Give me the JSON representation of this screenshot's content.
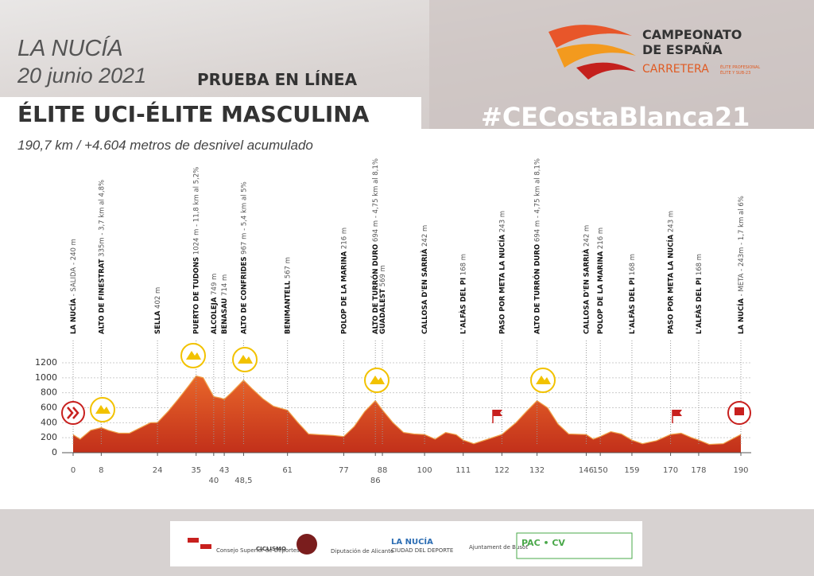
{
  "header": {
    "location": "LA NUCÍA",
    "date": "20 junio 2021",
    "stage": "PRUEBA EN LÍNEA",
    "category": "ÉLITE UCI-ÉLITE MASCULINA",
    "summary": "190,7 km / +4.604 metros de desnivel acumulado",
    "hashtag": "#CECostaBlanca21"
  },
  "logo": {
    "line1": "CAMPEONATO",
    "line2": "DE ESPAÑA",
    "line3": "CARRETERA",
    "line4": "ÉLITE PROFESIONAL",
    "line5": "ÉLITE Y SUB-23"
  },
  "sponsors": [
    "Consejo Superior de Deportes",
    "CICLISMO",
    "Diputación de Alicante",
    "LA NUCÍA",
    "CIUDAD DEL DEPORTE",
    "Ajuntament de Busot",
    "PAC • CV"
  ],
  "chart_data": {
    "type": "area",
    "color": "#d8461c",
    "x": [
      0,
      2,
      5,
      8,
      10,
      13,
      16,
      19,
      22,
      24,
      27,
      30,
      33,
      35,
      37,
      40,
      42,
      43,
      45,
      48.5,
      51,
      54,
      57,
      61,
      64,
      67,
      70,
      74,
      77,
      80,
      83,
      86,
      88,
      91,
      94,
      97,
      100,
      103,
      106,
      109,
      111,
      114,
      118,
      122,
      126,
      129,
      132,
      135,
      138,
      141,
      146,
      148,
      150,
      153,
      156,
      159,
      162,
      166,
      170,
      173,
      176,
      178,
      181,
      185,
      190
    ],
    "values": [
      240,
      180,
      300,
      335,
      300,
      260,
      260,
      330,
      400,
      402,
      550,
      720,
      900,
      1024,
      1000,
      749,
      730,
      714,
      800,
      967,
      850,
      720,
      620,
      567,
      400,
      250,
      240,
      230,
      216,
      350,
      550,
      694,
      569,
      400,
      270,
      250,
      242,
      180,
      270,
      240,
      168,
      120,
      180,
      243,
      400,
      550,
      694,
      600,
      380,
      250,
      242,
      180,
      216,
      280,
      250,
      168,
      120,
      160,
      243,
      260,
      200,
      168,
      110,
      120,
      243
    ],
    "xlim": [
      0,
      190
    ],
    "ylim": [
      0,
      1200
    ],
    "yticks": [
      0,
      200,
      400,
      600,
      800,
      1000,
      1200
    ],
    "xticks": [
      0,
      8,
      24,
      35,
      40,
      43,
      {
        "value": 48.5,
        "label": "48,5"
      },
      61,
      77,
      86,
      88,
      100,
      111,
      122,
      132,
      146,
      150,
      159,
      170,
      178,
      190
    ],
    "grid": true,
    "waypoints": [
      {
        "km": 0,
        "name": "LA NUCÍA",
        "detail": " - SALIDA - 240 m"
      },
      {
        "km": 8,
        "name": "ALTO DE FINESTRAT",
        "detail": " 335m - 3,7 km al 4,8%"
      },
      {
        "km": 24,
        "name": "SELLA",
        "detail": " 402 m"
      },
      {
        "km": 35,
        "name": "PUERTO DE TUDONS",
        "detail": " 1024 m - 11,8 km al 5,2%"
      },
      {
        "km": 40,
        "name": "ALCOLEJA",
        "detail": " 749 m"
      },
      {
        "km": 43,
        "name": "BENASAU",
        "detail": " 714 m"
      },
      {
        "km": 48.5,
        "name": "ALTO DE CONFRIDES",
        "detail": " 967 m - 5,4 km al 5%"
      },
      {
        "km": 61,
        "name": "BENIMANTELL",
        "detail": " 567 m"
      },
      {
        "km": 77,
        "name": "POLOP DE LA MARINA",
        "detail": " 216 m"
      },
      {
        "km": 86,
        "name": "ALTO DE TURRÓN DURO",
        "detail": " 694 m - 4,75 km al 8,1%"
      },
      {
        "km": 88,
        "name": "GUADALEST",
        "detail": " 569 m"
      },
      {
        "km": 100,
        "name": "CALLOSA D'EN SARRIÀ",
        "detail": " 242 m"
      },
      {
        "km": 111,
        "name": "L'ALFÀS DEL PI",
        "detail": " 168 m"
      },
      {
        "km": 122,
        "name": "PASO POR META LA NUCÍA",
        "detail": " 243 m"
      },
      {
        "km": 132,
        "name": "ALTO DE TURRÓN DURO",
        "detail": " 694 m - 4,75 km al 8,1%"
      },
      {
        "km": 146,
        "name": "CALLOSA D'EN SARRIÀ",
        "detail": " 242 m"
      },
      {
        "km": 150,
        "name": "POLOP DE LA MARINA",
        "detail": " 216 m"
      },
      {
        "km": 159,
        "name": "L'ALFÀS DEL PI",
        "detail": " 168 m"
      },
      {
        "km": 170,
        "name": "PASO POR META LA NUCÍA",
        "detail": " 243 m"
      },
      {
        "km": 178,
        "name": "L'ALFÀS DEL PI",
        "detail": " 168 m"
      },
      {
        "km": 190,
        "name": "LA NUCÍA",
        "detail": " - META - 243m - 1,7 km al 6%"
      }
    ]
  }
}
